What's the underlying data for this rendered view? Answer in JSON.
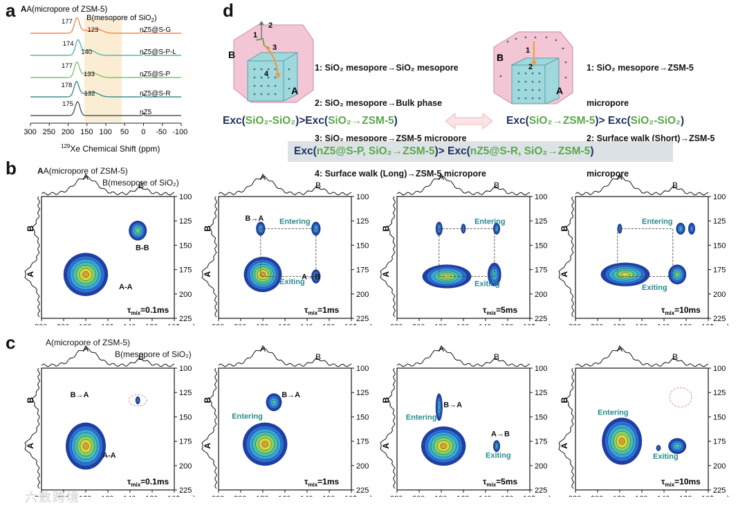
{
  "panel_labels": {
    "a": "a",
    "b": "b",
    "c": "c",
    "d": "d"
  },
  "panel_a": {
    "label_A": "A(micropore of ZSM-5)",
    "label_B": "B(mesopore of SiO",
    "label_B_sub": "2",
    "label_B_end": ")",
    "xlabel_sup": "129",
    "xlabel": "Xe Chemical Shift (ppm)",
    "ticks": [
      "300",
      "250",
      "200",
      "150",
      "100",
      "50",
      "0",
      "-50",
      "-100"
    ],
    "chart_data": {
      "type": "line",
      "title": "",
      "xlabel": "129Xe Chemical Shift (ppm)",
      "ylabel": "",
      "xlim": [
        300,
        -100
      ],
      "series": [
        {
          "name": "nZ5@S-G",
          "color": "#f08a50",
          "peaks": [
            177,
            123
          ],
          "peak_labels": [
            "177",
            "123"
          ]
        },
        {
          "name": "nZ5@S-P-L",
          "color": "#4fb6ae",
          "peaks": [
            174,
            140
          ],
          "peak_labels": [
            "174",
            "140"
          ]
        },
        {
          "name": "nZ5@S-P",
          "color": "#7cc46c",
          "peaks": [
            177,
            133
          ],
          "peak_labels": [
            "177",
            "133"
          ]
        },
        {
          "name": "nZ5@S-R",
          "color": "#3a8f8a",
          "peaks": [
            178,
            132
          ],
          "peak_labels": [
            "178",
            "132"
          ]
        },
        {
          "name": "nZ5",
          "color": "#555555",
          "peaks": [
            175
          ],
          "peak_labels": [
            "175"
          ]
        }
      ]
    }
  },
  "panel_d": {
    "left_list": [
      "1: SiO₂ mesopore→SiO₂ mesopore",
      "2: SiO₂ mesopore→Bulk phase",
      "3: SiO₂ mesopore→ZSM-5 micropore",
      "4: Surface walk (Long)→ZSM-5 micropore"
    ],
    "right_list": [
      "1: SiO₂ mesopore→ZSM-5",
      "micropore",
      "2: Surface walk (Short)→ZSM-5",
      "micropore"
    ],
    "eq_left": {
      "p1": "Exc(",
      "g1": "SiO₂-SiO₂",
      "p2": ")>Exc(",
      "g2": "SiO₂→ZSM-5",
      "p3": ")"
    },
    "eq_right": {
      "p1": "Exc(",
      "g1": "SiO₂→ZSM-5",
      "p2": ")> Exc(",
      "g2": "SiO₂-SiO₂",
      "p3": ")"
    },
    "eq_bottom": {
      "p1": "Exc(",
      "g1": "nZ5@S-P, SiO₂→ZSM-5",
      "p2": ")> Exc(",
      "g2": "nZ5@S-R, SiO₂→ZSM-5",
      "p3": ")"
    },
    "schematic_labels": {
      "B": "B",
      "A": "A",
      "n1": "1",
      "n2": "2",
      "n3": "3",
      "n4": "4"
    }
  },
  "panel_b": {
    "header_A": "A(micropore of ZSM-5)",
    "header_B": "B(mesopore of SiO₂)",
    "axis_letter_A": "A",
    "axis_letter_B": "B",
    "ppm": "(ppm)",
    "x_ticks": [
      "220",
      "200",
      "180",
      "160",
      "140",
      "120",
      "100"
    ],
    "y_ticks": [
      "100",
      "125",
      "150",
      "175",
      "200",
      "225"
    ],
    "plots": [
      {
        "tmix": "=0.1ms",
        "labels": [
          "A-A",
          "B-B"
        ]
      },
      {
        "tmix": "=1ms",
        "labels": [
          "B→A",
          "Entering",
          "Exiting",
          "A→B"
        ]
      },
      {
        "tmix": "=5ms",
        "labels": [
          "Entering",
          "Exiting"
        ]
      },
      {
        "tmix": "=10ms",
        "labels": [
          "Entering",
          "Exiting"
        ]
      }
    ],
    "tau": "τ",
    "tau_sub": "mix"
  },
  "panel_c": {
    "plots": [
      {
        "tmix": "=0.1ms",
        "labels": [
          "B→A",
          "A-A"
        ]
      },
      {
        "tmix": "=1ms",
        "labels": [
          "B→A",
          "Entering"
        ]
      },
      {
        "tmix": "=5ms",
        "labels": [
          "Entering",
          "B→A",
          "A→B",
          "Exiting"
        ]
      },
      {
        "tmix": "=10ms",
        "labels": [
          "Entering",
          "Exiting"
        ]
      }
    ]
  },
  "watermark": "六数跨境"
}
